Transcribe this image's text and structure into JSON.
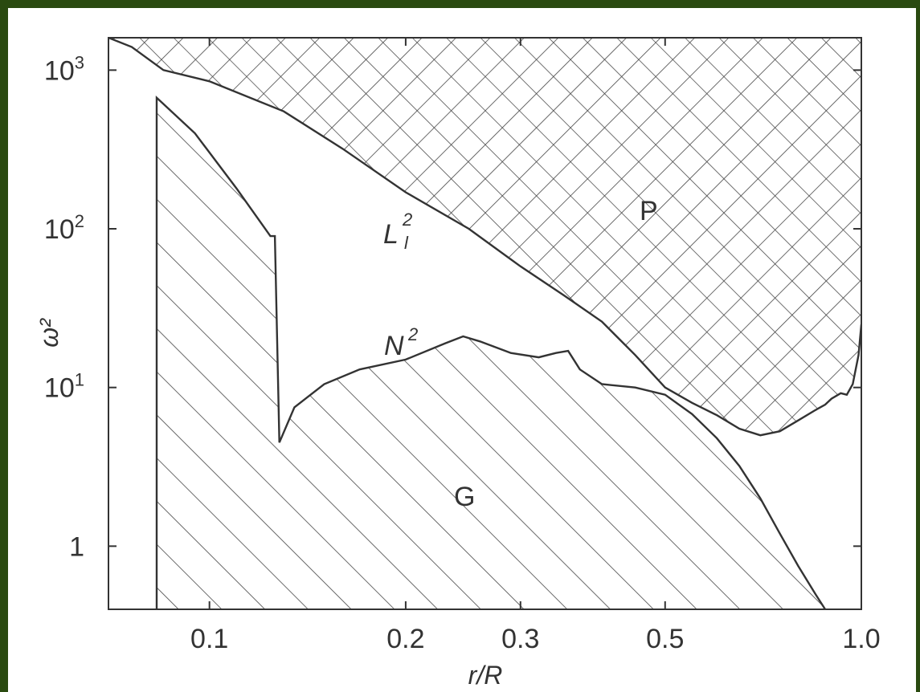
{
  "chart_data": {
    "type": "line",
    "xlabel": "r/R",
    "ylabel": "ω²",
    "x_scale": "log",
    "y_scale": "log",
    "xlim": [
      0.07,
      1.0
    ],
    "ylim": [
      0.4,
      1600
    ],
    "x_ticks": [
      {
        "value": 0.1,
        "label": "0.1"
      },
      {
        "value": 0.2,
        "label": "0.2"
      },
      {
        "value": 0.3,
        "label": "0.3"
      },
      {
        "value": 0.5,
        "label": "0.5"
      },
      {
        "value": 1.0,
        "label": "1.0"
      }
    ],
    "y_ticks": [
      {
        "value": 1,
        "label": "1",
        "sup": ""
      },
      {
        "value": 10,
        "label": "10",
        "sup": "1"
      },
      {
        "value": 100,
        "label": "10",
        "sup": "2"
      },
      {
        "value": 1000,
        "label": "10",
        "sup": "3"
      }
    ],
    "grid": false,
    "series": [
      {
        "name": "L",
        "name_sup": "2",
        "name_sub": "l",
        "x": [
          0.07,
          0.076,
          0.085,
          0.1,
          0.13,
          0.16,
          0.2,
          0.25,
          0.3,
          0.35,
          0.4,
          0.45,
          0.5,
          0.55,
          0.6,
          0.65,
          0.7,
          0.75,
          0.8,
          0.85,
          0.88,
          0.9,
          0.93,
          0.95,
          0.97,
          0.99,
          1.0
        ],
        "y": [
          1600,
          1400,
          1000,
          850,
          550,
          320,
          170,
          100,
          58,
          38,
          26,
          16,
          10,
          8,
          6.7,
          5.5,
          5.0,
          5.3,
          6.2,
          7.2,
          7.8,
          8.5,
          9.2,
          9.0,
          10.5,
          16,
          25
        ]
      },
      {
        "name": "N",
        "name_sup": "2",
        "x": [
          0.083,
          0.095,
          0.11,
          0.124,
          0.126,
          0.128,
          0.135,
          0.15,
          0.17,
          0.2,
          0.23,
          0.245,
          0.26,
          0.29,
          0.32,
          0.34,
          0.355,
          0.37,
          0.4,
          0.45,
          0.5,
          0.55,
          0.6,
          0.65,
          0.7,
          0.75,
          0.8,
          0.85,
          0.88
        ],
        "y": [
          670,
          400,
          180,
          90,
          90,
          4.5,
          7.5,
          10.5,
          13,
          15,
          19,
          21,
          19.5,
          16.5,
          15.5,
          16.5,
          17,
          13,
          10.5,
          10.0,
          9.0,
          6.8,
          4.8,
          3.2,
          2.0,
          1.2,
          0.75,
          0.5,
          0.4
        ]
      }
    ],
    "regions": [
      {
        "name": "P",
        "fill": "crosshatch"
      },
      {
        "name": "G",
        "fill": "hatch"
      }
    ]
  }
}
